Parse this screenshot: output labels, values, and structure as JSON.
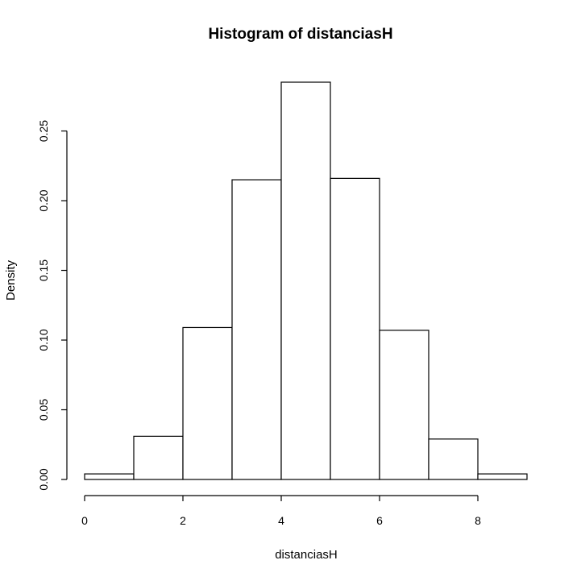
{
  "chart_data": {
    "type": "bar",
    "title": "Histogram of distanciasH",
    "xlabel": "distanciasH",
    "ylabel": "Density",
    "bins": [
      {
        "start": 0,
        "end": 1,
        "density": 0.004
      },
      {
        "start": 1,
        "end": 2,
        "density": 0.031
      },
      {
        "start": 2,
        "end": 3,
        "density": 0.109
      },
      {
        "start": 3,
        "end": 4,
        "density": 0.215
      },
      {
        "start": 4,
        "end": 5,
        "density": 0.285
      },
      {
        "start": 5,
        "end": 6,
        "density": 0.216
      },
      {
        "start": 6,
        "end": 7,
        "density": 0.107
      },
      {
        "start": 7,
        "end": 8,
        "density": 0.029
      },
      {
        "start": 8,
        "end": 9,
        "density": 0.004
      }
    ],
    "xlim": [
      0,
      9
    ],
    "ylim": [
      0,
      0.285
    ],
    "x_ticks": [
      0,
      2,
      4,
      6,
      8
    ],
    "x_tick_labels": [
      "0",
      "2",
      "4",
      "6",
      "8"
    ],
    "y_ticks": [
      0,
      0.05,
      0.1,
      0.15,
      0.2,
      0.25
    ],
    "y_tick_labels": [
      "0.00",
      "0.05",
      "0.10",
      "0.15",
      "0.20",
      "0.25"
    ],
    "grid": false,
    "legend": "none",
    "colors": {
      "bar_fill": "#ffffff",
      "bar_stroke": "#000000",
      "axis": "#000000",
      "text": "#000000",
      "background": "#ffffff"
    }
  }
}
